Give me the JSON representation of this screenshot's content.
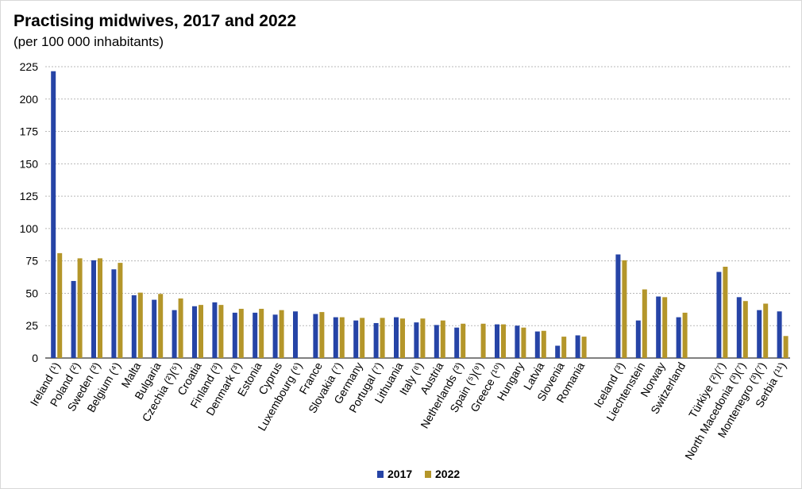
{
  "chart_data": {
    "type": "bar",
    "title": "Practising midwives, 2017 and 2022",
    "subtitle": "(per 100 000 inhabitants)",
    "xlabel": "",
    "ylabel": "",
    "ylim": [
      0,
      225
    ],
    "yticks": [
      0,
      25,
      50,
      75,
      100,
      125,
      150,
      175,
      200,
      225
    ],
    "grid": true,
    "legend_position": "bottom-center",
    "groups": [
      [
        "Ireland (¹)",
        "Poland (²)",
        "Sweden (³)",
        "Belgium (⁴)",
        "Malta",
        "Bulgaria",
        "Czechia (²)(⁵)",
        "Croatia",
        "Finland (³)",
        "Denmark (³)",
        "Estonia",
        "Cyprus",
        "Luxembourg (⁶)",
        "France",
        "Slovakia (⁷)",
        "Germany",
        "Portugal (⁷)",
        "Lithuania",
        "Italy (⁸)",
        "Austria",
        "Netherlands (³)",
        "Spain (⁵)(⁹)",
        "Greece (¹⁰)",
        "Hungary",
        "Latvia",
        "Slovenia",
        "Romania"
      ],
      [
        "Iceland (³)",
        "Liechtenstein",
        "Norway",
        "Switzerland"
      ],
      [
        "Türkiye (²)(⁷)",
        "North Macedonia (³)(⁷)",
        "Montenegro (³)(⁷)",
        "Serbia (¹¹)"
      ]
    ],
    "categories": [
      "Ireland (¹)",
      "Poland (²)",
      "Sweden (³)",
      "Belgium (⁴)",
      "Malta",
      "Bulgaria",
      "Czechia (²)(⁵)",
      "Croatia",
      "Finland (³)",
      "Denmark (³)",
      "Estonia",
      "Cyprus",
      "Luxembourg (⁶)",
      "France",
      "Slovakia (⁷)",
      "Germany",
      "Portugal (⁷)",
      "Lithuania",
      "Italy (⁸)",
      "Austria",
      "Netherlands (³)",
      "Spain (⁵)(⁹)",
      "Greece (¹⁰)",
      "Hungary",
      "Latvia",
      "Slovenia",
      "Romania",
      "Iceland (³)",
      "Liechtenstein",
      "Norway",
      "Switzerland",
      "Türkiye (²)(⁷)",
      "North Macedonia (³)(⁷)",
      "Montenegro (³)(⁷)",
      "Serbia (¹¹)"
    ],
    "series": [
      {
        "name": "2017",
        "color": "#2644a6",
        "values": [
          221.5,
          59.5,
          75.5,
          68.5,
          48.5,
          45,
          37,
          40,
          43,
          35,
          35,
          33.5,
          36,
          34,
          31.5,
          29,
          27,
          31.5,
          27.5,
          25.5,
          23.5,
          null,
          26,
          25,
          20.5,
          9.5,
          17.5,
          80,
          29,
          47.5,
          31.5,
          66.5,
          47,
          37,
          36
        ]
      },
      {
        "name": "2022",
        "color": "#b4962a",
        "values": [
          81,
          77,
          77,
          73.5,
          50.5,
          49.5,
          46,
          41,
          41,
          38,
          38,
          37,
          null,
          35.5,
          31.5,
          31,
          31,
          30.5,
          30.5,
          29,
          26.5,
          26.5,
          26,
          23.5,
          21,
          16.5,
          16.5,
          75.5,
          53,
          47,
          35,
          70.5,
          44,
          42,
          17
        ]
      }
    ]
  }
}
